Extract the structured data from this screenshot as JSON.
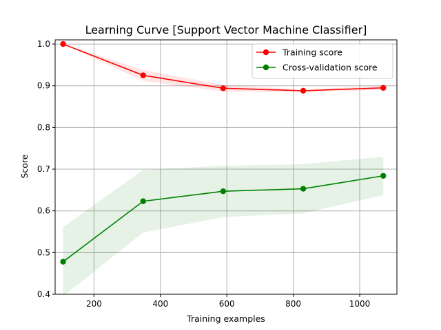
{
  "chart_data": {
    "type": "line",
    "title": "Learning Curve [Support Vector Machine Classifier]",
    "xlabel": "Training examples",
    "ylabel": "Score",
    "xlim": [
      83,
      1112
    ],
    "ylim": [
      0.4,
      1.01
    ],
    "xticks": [
      200,
      400,
      600,
      800,
      1000
    ],
    "xtick_labels": [
      "200",
      "400",
      "600",
      "800",
      "1000"
    ],
    "yticks": [
      0.4,
      0.5,
      0.6,
      0.7,
      0.8,
      0.9,
      1.0
    ],
    "ytick_labels": [
      "0.4",
      "0.5",
      "0.6",
      "0.7",
      "0.8",
      "0.9",
      "1.0"
    ],
    "grid": true,
    "legend_position": "top-right",
    "x": [
      107,
      348,
      589,
      830,
      1071
    ],
    "series": [
      {
        "name": "Training score",
        "color": "#ff0000",
        "values": [
          1.0,
          0.925,
          0.894,
          0.888,
          0.895
        ],
        "lower": [
          1.0,
          0.912,
          0.886,
          0.885,
          0.89
        ],
        "upper": [
          1.0,
          0.938,
          0.902,
          0.891,
          0.9
        ]
      },
      {
        "name": "Cross-validation score",
        "color": "#008000",
        "values": [
          0.478,
          0.623,
          0.647,
          0.653,
          0.684
        ],
        "lower": [
          0.395,
          0.548,
          0.585,
          0.594,
          0.638
        ],
        "upper": [
          0.561,
          0.698,
          0.708,
          0.712,
          0.73
        ]
      }
    ]
  }
}
